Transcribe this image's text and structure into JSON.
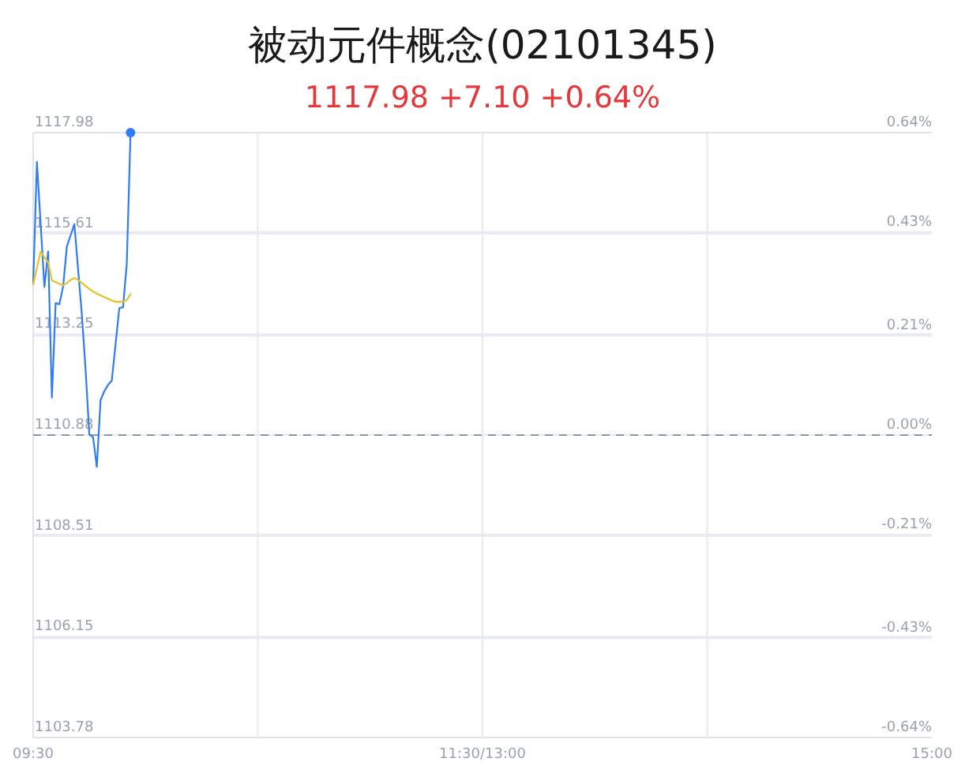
{
  "chart_data": {
    "type": "line",
    "title": "被动元件概念(02101345)",
    "subtitle": "1117.98 +7.10 +0.64%",
    "categories": [
      "09:30",
      null,
      null,
      null,
      null,
      null,
      null,
      null,
      null,
      null,
      null,
      null,
      null,
      null,
      null,
      null,
      null,
      null,
      null,
      null,
      null,
      null,
      null,
      null,
      null,
      null,
      null,
      null,
      null,
      null,
      null,
      null,
      null,
      null,
      null,
      null,
      null,
      null,
      null,
      null,
      null,
      null,
      null,
      null,
      null,
      null,
      null,
      null,
      null,
      null,
      null,
      null,
      null,
      null,
      null,
      null,
      null,
      null,
      null,
      null,
      null,
      null,
      null,
      null,
      null,
      null,
      null,
      null,
      null,
      null,
      null,
      null,
      null,
      null,
      null,
      null,
      null,
      null,
      null,
      null,
      null,
      null,
      null,
      null,
      null,
      null,
      null,
      null,
      null,
      null,
      null,
      null,
      null,
      null,
      null,
      null,
      null,
      null,
      null,
      null,
      null,
      null,
      null,
      null,
      null,
      null,
      null,
      null,
      null,
      null,
      null,
      null,
      null,
      null,
      null,
      null,
      null,
      null,
      null,
      null,
      "11:30/13:00",
      null,
      null,
      null,
      null,
      null,
      null,
      null,
      null,
      null,
      null,
      null,
      null,
      null,
      null,
      null,
      null,
      null,
      null,
      null,
      null,
      null,
      null,
      null,
      null,
      null,
      null,
      null,
      null,
      null,
      null,
      null,
      null,
      null,
      null,
      null,
      null,
      null,
      null,
      null,
      null,
      null,
      null,
      null,
      null,
      null,
      null,
      null,
      null,
      null,
      null,
      null,
      null,
      null,
      null,
      null,
      null,
      null,
      null,
      null,
      null,
      null,
      null,
      null,
      null,
      null,
      null,
      null,
      null,
      null,
      null,
      null,
      null,
      null,
      null,
      null,
      null,
      null,
      null,
      null,
      null,
      null,
      null,
      null,
      null,
      null,
      null,
      null,
      null,
      null,
      null,
      null,
      null,
      null,
      null,
      null,
      null,
      null,
      null,
      null,
      null,
      null,
      null,
      null,
      null,
      null,
      null,
      null,
      null,
      null,
      null,
      null,
      null,
      null,
      null,
      null,
      null,
      null,
      null,
      null,
      "15:00"
    ],
    "ylim": [
      1103.78,
      1117.98
    ],
    "yticks": [
      1103.78,
      1106.15,
      1108.51,
      1110.88,
      1113.25,
      1115.61,
      1117.98
    ],
    "y2lim": [
      -0.64,
      0.64
    ],
    "y2ticks": [
      {
        "value": -0.64,
        "label": "-0.64%"
      },
      {
        "value": -0.43,
        "label": "-0.43%"
      },
      {
        "value": -0.21,
        "label": "-0.21%"
      },
      {
        "value": 0,
        "label": "0.00%"
      },
      {
        "value": 0.21,
        "label": "0.21%"
      },
      {
        "value": 0.43,
        "label": "0.43%"
      },
      {
        "value": 0.64,
        "label": "0.64%"
      }
    ],
    "grid": true,
    "series": [
      {
        "color": "#2f7cf6",
        "values": [
          1114.42,
          1117.29,
          1115.83,
          1114.36,
          1115.19,
          1111.76,
          1113.98,
          1113.95,
          1114.37,
          1115.31,
          1115.57,
          1115.83,
          1114.77,
          1113.71,
          1112.42,
          1110.89,
          1110.83,
          1110.13,
          1111.7,
          1111.91,
          1112.06,
          1112.16,
          1113.01,
          1113.86,
          1113.88,
          1114.9,
          1117.98,
          null,
          null,
          null,
          null,
          null,
          null,
          null,
          null,
          null,
          null,
          null,
          null,
          null,
          null,
          null,
          null,
          null,
          null,
          null,
          null,
          null,
          null,
          null,
          null,
          null,
          null,
          null,
          null,
          null,
          null,
          null,
          null,
          null,
          null,
          null,
          null,
          null,
          null,
          null,
          null,
          null,
          null,
          null,
          null,
          null,
          null,
          null,
          null,
          null,
          null,
          null,
          null,
          null,
          null,
          null,
          null,
          null,
          null,
          null,
          null,
          null,
          null,
          null,
          null,
          null,
          null,
          null,
          null,
          null,
          null,
          null,
          null,
          null,
          null,
          null,
          null,
          null,
          null,
          null,
          null,
          null,
          null,
          null,
          null,
          null,
          null,
          null,
          null,
          null,
          null,
          null,
          null,
          null,
          null,
          null,
          null,
          null,
          null,
          null,
          null,
          null,
          null,
          null,
          null,
          null,
          null,
          null,
          null,
          null,
          null,
          null,
          null,
          null,
          null,
          null,
          null,
          null,
          null,
          null,
          null,
          null,
          null,
          null,
          null,
          null,
          null,
          null,
          null,
          null,
          null,
          null,
          null,
          null,
          null,
          null,
          null,
          null,
          null,
          null,
          null,
          null,
          null,
          null,
          null,
          null,
          null,
          null,
          null,
          null,
          null,
          null,
          null,
          null,
          null,
          null,
          null,
          null,
          null,
          null,
          null,
          null,
          null,
          null,
          null,
          null,
          null,
          null,
          null,
          null,
          null,
          null,
          null,
          null,
          null,
          null,
          null,
          null,
          null,
          null,
          null,
          null,
          null,
          null,
          null,
          null,
          null,
          null,
          null,
          null,
          null,
          null,
          null,
          null,
          null,
          null,
          null,
          null,
          null,
          null,
          null,
          null,
          null,
          null,
          null,
          null,
          null,
          null,
          null,
          null,
          null,
          null,
          null,
          null,
          null
        ]
      },
      {
        "color": "#e3c22a",
        "values": [
          1114.42,
          1114.8,
          1115.19,
          1115.05,
          1114.94,
          1114.51,
          1114.47,
          1114.43,
          1114.4,
          1114.45,
          1114.52,
          1114.57,
          1114.52,
          1114.45,
          1114.38,
          1114.31,
          1114.25,
          1114.2,
          1114.16,
          1114.12,
          1114.08,
          1114.04,
          1114.01,
          1114.01,
          1114.01,
          1114.05,
          1114.19,
          null,
          null,
          null,
          null,
          null,
          null,
          null,
          null,
          null,
          null,
          null,
          null,
          null,
          null,
          null,
          null,
          null,
          null,
          null,
          null,
          null,
          null,
          null,
          null,
          null,
          null,
          null,
          null,
          null,
          null,
          null,
          null,
          null,
          null,
          null,
          null,
          null,
          null,
          null,
          null,
          null,
          null,
          null,
          null,
          null,
          null,
          null,
          null,
          null,
          null,
          null,
          null,
          null,
          null,
          null,
          null,
          null,
          null,
          null,
          null,
          null,
          null,
          null,
          null,
          null,
          null,
          null,
          null,
          null,
          null,
          null,
          null,
          null,
          null,
          null,
          null,
          null,
          null,
          null,
          null,
          null,
          null,
          null,
          null,
          null,
          null,
          null,
          null,
          null,
          null,
          null,
          null,
          null,
          null,
          null,
          null,
          null,
          null,
          null,
          null,
          null,
          null,
          null,
          null,
          null,
          null,
          null,
          null,
          null,
          null,
          null,
          null,
          null,
          null,
          null,
          null,
          null,
          null,
          null,
          null,
          null,
          null,
          null,
          null,
          null,
          null,
          null,
          null,
          null,
          null,
          null,
          null,
          null,
          null,
          null,
          null,
          null,
          null,
          null,
          null,
          null,
          null,
          null,
          null,
          null,
          null,
          null,
          null,
          null,
          null,
          null,
          null,
          null,
          null,
          null,
          null,
          null,
          null,
          null,
          null,
          null,
          null,
          null,
          null,
          null,
          null,
          null,
          null,
          null,
          null,
          null,
          null,
          null,
          null,
          null,
          null,
          null,
          null,
          null,
          null,
          null,
          null,
          null,
          null,
          null,
          null,
          null,
          null,
          null,
          null,
          null,
          null,
          null,
          null,
          null,
          null,
          null,
          null,
          null,
          null,
          null,
          null,
          null,
          null,
          null,
          null,
          null,
          null,
          null,
          null,
          null,
          null,
          null,
          null
        ]
      },
      {
        "type": "scatter",
        "color": "#2f7cf6",
        "values": [
          null,
          null,
          null,
          null,
          null,
          null,
          null,
          null,
          null,
          null,
          null,
          null,
          null,
          null,
          null,
          null,
          null,
          null,
          null,
          null,
          null,
          null,
          null,
          null,
          null,
          null,
          1117.98,
          null,
          null,
          null,
          null,
          null,
          null,
          null,
          null,
          null,
          null,
          null,
          null,
          null,
          null,
          null,
          null,
          null,
          null,
          null,
          null,
          null,
          null,
          null,
          null,
          null,
          null,
          null,
          null,
          null,
          null,
          null,
          null,
          null,
          null,
          null,
          null,
          null,
          null,
          null,
          null,
          null,
          null,
          null,
          null,
          null,
          null,
          null,
          null,
          null,
          null,
          null,
          null,
          null,
          null,
          null,
          null,
          null,
          null,
          null,
          null,
          null,
          null,
          null,
          null,
          null,
          null,
          null,
          null,
          null,
          null,
          null,
          null,
          null,
          null,
          null,
          null,
          null,
          null,
          null,
          null,
          null,
          null,
          null,
          null,
          null,
          null,
          null,
          null,
          null,
          null,
          null,
          null,
          null,
          null,
          null,
          null,
          null,
          null,
          null,
          null,
          null,
          null,
          null,
          null,
          null,
          null,
          null,
          null,
          null,
          null,
          null,
          null,
          null,
          null,
          null,
          null,
          null,
          null,
          null,
          null,
          null,
          null,
          null,
          null,
          null,
          null,
          null,
          null,
          null,
          null,
          null,
          null,
          null,
          null,
          null,
          null,
          null,
          null,
          null,
          null,
          null,
          null,
          null,
          null,
          null,
          null,
          null,
          null,
          null,
          null,
          null,
          null,
          null,
          null,
          null,
          null,
          null,
          null,
          null,
          null,
          null,
          null,
          null,
          null,
          null,
          null,
          null,
          null,
          null,
          null,
          null,
          null,
          null,
          null,
          null,
          null,
          null,
          null,
          null,
          null,
          null,
          null,
          null,
          null,
          null,
          null,
          null,
          null,
          null,
          null,
          null,
          null,
          null,
          null,
          null,
          null,
          null,
          null,
          null,
          null,
          null,
          null,
          null,
          null,
          null,
          null,
          null,
          null,
          null,
          null,
          null,
          null,
          null,
          null
        ]
      }
    ],
    "ref_lines": [
      {
        "axis": "y",
        "value": 1110.88,
        "color": "#8a94b0",
        "line_style": "dashed"
      }
    ]
  }
}
